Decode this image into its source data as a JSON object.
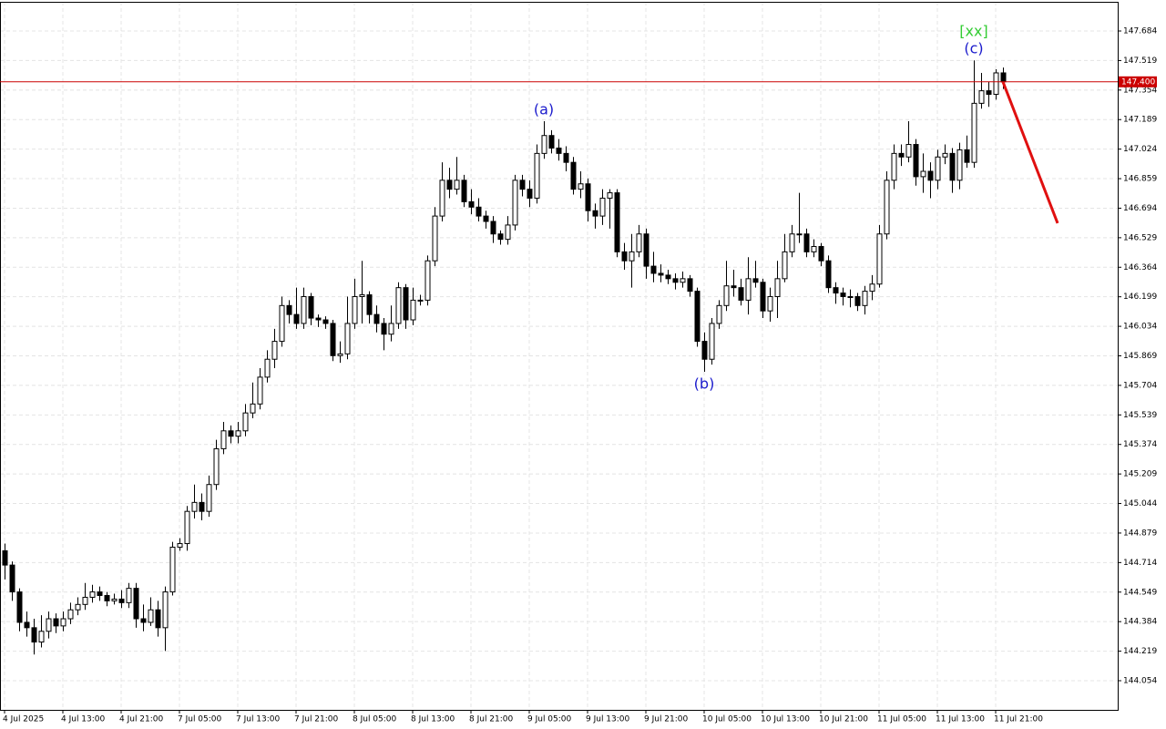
{
  "chart_data": {
    "type": "candlestick",
    "open": [
      144.78,
      144.7,
      144.55,
      144.38,
      144.35,
      144.27,
      144.33,
      144.4,
      144.36,
      144.4,
      144.45,
      144.48,
      144.52,
      144.55,
      144.53,
      144.5,
      144.51,
      144.49,
      144.57,
      144.4,
      144.38,
      144.45,
      144.35,
      144.55,
      144.8,
      144.82,
      145.0,
      145.05,
      145.0,
      145.15,
      145.35,
      145.45,
      145.42,
      145.45,
      145.55,
      145.6,
      145.75,
      145.85,
      145.95,
      146.15,
      146.1,
      146.05,
      146.2,
      146.08,
      146.07,
      146.05,
      145.87,
      145.88,
      146.05,
      146.2,
      146.21,
      146.1,
      146.05,
      145.99,
      146.05,
      146.25,
      146.07,
      146.18,
      146.18,
      146.4,
      146.65,
      146.85,
      146.8,
      146.85,
      146.73,
      146.7,
      146.65,
      146.62,
      146.55,
      146.52,
      146.6,
      146.85,
      146.8,
      146.75,
      147.0,
      147.1,
      147.03,
      147.0,
      146.95,
      146.8,
      146.83,
      146.68,
      146.65,
      146.75,
      146.78,
      146.45,
      146.4,
      146.45,
      146.55,
      146.37,
      146.33,
      146.32,
      146.3,
      146.28,
      146.3,
      146.23,
      145.95,
      145.85,
      146.05,
      146.15,
      146.26,
      146.25,
      146.18,
      146.3,
      146.28,
      146.12,
      146.2,
      146.3,
      146.45,
      146.55,
      146.55,
      146.45,
      146.48,
      146.4,
      146.25,
      146.22,
      146.2,
      146.2,
      146.15,
      146.23,
      146.27,
      146.55,
      146.85,
      147.0,
      146.98,
      147.05,
      146.87,
      146.9,
      146.85,
      146.98,
      147.0,
      146.85,
      147.02,
      146.95,
      147.28,
      147.35,
      147.33,
      147.45
    ],
    "high": [
      144.82,
      144.72,
      144.57,
      144.44,
      144.4,
      144.42,
      144.44,
      144.43,
      144.44,
      144.49,
      144.52,
      144.6,
      144.59,
      144.58,
      144.55,
      144.54,
      144.56,
      144.6,
      144.6,
      144.48,
      144.52,
      144.5,
      144.58,
      144.83,
      144.85,
      145.03,
      145.15,
      145.1,
      145.2,
      145.4,
      145.5,
      145.48,
      145.5,
      145.6,
      145.72,
      145.8,
      145.9,
      146.02,
      146.2,
      146.18,
      146.25,
      146.25,
      146.22,
      146.1,
      146.09,
      146.07,
      145.95,
      146.2,
      146.3,
      146.4,
      146.23,
      146.15,
      146.08,
      146.15,
      146.28,
      146.27,
      146.25,
      146.21,
      146.43,
      146.7,
      146.95,
      146.92,
      146.98,
      146.88,
      146.8,
      146.75,
      146.68,
      146.65,
      146.57,
      146.65,
      146.88,
      146.88,
      146.85,
      147.05,
      147.18,
      147.13,
      147.08,
      147.04,
      146.98,
      146.9,
      146.86,
      146.72,
      146.8,
      146.8,
      146.8,
      146.5,
      146.55,
      146.6,
      146.58,
      146.45,
      146.38,
      146.35,
      146.33,
      146.34,
      146.32,
      146.25,
      146.0,
      146.08,
      146.18,
      146.4,
      146.35,
      146.3,
      146.42,
      146.4,
      146.3,
      146.25,
      146.4,
      146.55,
      146.6,
      146.78,
      146.58,
      146.52,
      146.5,
      146.43,
      146.28,
      146.25,
      146.24,
      146.22,
      146.26,
      146.32,
      146.6,
      146.9,
      147.05,
      147.05,
      147.18,
      147.08,
      147.0,
      146.95,
      147.02,
      147.05,
      147.03,
      147.06,
      147.1,
      147.52,
      147.45,
      147.4,
      147.47,
      147.48
    ],
    "low": [
      144.62,
      144.5,
      144.33,
      144.3,
      144.2,
      144.24,
      144.29,
      144.32,
      144.33,
      144.37,
      144.42,
      144.45,
      144.49,
      144.5,
      144.47,
      144.48,
      144.46,
      144.46,
      144.35,
      144.33,
      144.36,
      144.3,
      144.22,
      144.53,
      144.78,
      144.78,
      144.96,
      144.95,
      144.97,
      145.12,
      145.32,
      145.38,
      145.38,
      145.42,
      145.52,
      145.57,
      145.72,
      145.8,
      145.92,
      146.05,
      146.02,
      146.02,
      146.04,
      146.03,
      146.02,
      145.84,
      145.83,
      145.85,
      146.02,
      146.05,
      146.05,
      146.0,
      145.9,
      145.95,
      146.02,
      146.02,
      146.04,
      146.15,
      146.15,
      146.37,
      146.62,
      146.75,
      146.77,
      146.7,
      146.66,
      146.62,
      146.58,
      146.5,
      146.49,
      146.49,
      146.57,
      146.76,
      146.7,
      146.72,
      146.97,
      147.0,
      146.96,
      146.9,
      146.77,
      146.75,
      146.62,
      146.58,
      146.6,
      146.58,
      146.42,
      146.35,
      146.25,
      146.42,
      146.3,
      146.28,
      146.28,
      146.27,
      146.24,
      146.25,
      146.2,
      145.92,
      145.78,
      145.82,
      146.02,
      146.12,
      146.2,
      146.15,
      146.1,
      146.25,
      146.08,
      146.06,
      146.08,
      146.28,
      146.42,
      146.5,
      146.42,
      146.42,
      146.37,
      146.22,
      146.16,
      146.15,
      146.14,
      146.12,
      146.1,
      146.18,
      146.25,
      146.52,
      146.8,
      146.93,
      146.95,
      146.82,
      146.78,
      146.75,
      146.8,
      146.94,
      146.78,
      146.8,
      146.92,
      146.92,
      147.25,
      147.26,
      147.3,
      147.36
    ],
    "close": [
      144.7,
      144.55,
      144.38,
      144.35,
      144.27,
      144.33,
      144.4,
      144.36,
      144.4,
      144.45,
      144.48,
      144.52,
      144.55,
      144.53,
      144.5,
      144.51,
      144.49,
      144.57,
      144.4,
      144.38,
      144.45,
      144.35,
      144.55,
      144.8,
      144.82,
      145.0,
      145.05,
      145.0,
      145.15,
      145.35,
      145.45,
      145.42,
      145.45,
      145.55,
      145.6,
      145.75,
      145.85,
      145.95,
      146.15,
      146.1,
      146.05,
      146.2,
      146.08,
      146.07,
      146.05,
      145.87,
      145.88,
      146.05,
      146.2,
      146.21,
      146.1,
      146.05,
      145.99,
      146.05,
      146.25,
      146.07,
      146.18,
      146.18,
      146.4,
      146.65,
      146.85,
      146.8,
      146.85,
      146.73,
      146.7,
      146.65,
      146.62,
      146.55,
      146.52,
      146.6,
      146.85,
      146.8,
      146.75,
      147.0,
      147.1,
      147.03,
      147.0,
      146.95,
      146.8,
      146.83,
      146.68,
      146.65,
      146.75,
      146.78,
      146.45,
      146.4,
      146.45,
      146.55,
      146.37,
      146.33,
      146.32,
      146.3,
      146.28,
      146.3,
      146.23,
      145.95,
      145.85,
      146.05,
      146.15,
      146.26,
      146.25,
      146.18,
      146.3,
      146.28,
      146.12,
      146.2,
      146.3,
      146.45,
      146.55,
      146.55,
      146.45,
      146.48,
      146.4,
      146.25,
      146.22,
      146.2,
      146.2,
      146.15,
      146.23,
      146.27,
      146.55,
      146.85,
      147.0,
      146.98,
      147.05,
      146.87,
      146.9,
      146.85,
      146.98,
      147.0,
      146.85,
      147.02,
      146.95,
      147.28,
      147.35,
      147.33,
      147.45,
      147.4
    ],
    "up_color": "#ffffff",
    "down_color": "#000000",
    "xlim": [
      -0.625,
      152.75
    ],
    "ylim": [
      143.891,
      147.847
    ],
    "xticks": [
      {
        "value": 0,
        "label": "4 Jul 2025"
      },
      {
        "value": 8,
        "label": "4 Jul 13:00"
      },
      {
        "value": 16,
        "label": "4 Jul 21:00"
      },
      {
        "value": 24,
        "label": "7 Jul 05:00"
      },
      {
        "value": 32,
        "label": "7 Jul 13:00"
      },
      {
        "value": 40,
        "label": "7 Jul 21:00"
      },
      {
        "value": 48,
        "label": "8 Jul 05:00"
      },
      {
        "value": 56,
        "label": "8 Jul 13:00"
      },
      {
        "value": 64,
        "label": "8 Jul 21:00"
      },
      {
        "value": 72,
        "label": "9 Jul 05:00"
      },
      {
        "value": 80,
        "label": "9 Jul 13:00"
      },
      {
        "value": 88,
        "label": "9 Jul 21:00"
      },
      {
        "value": 96,
        "label": "10 Jul 05:00"
      },
      {
        "value": 104,
        "label": "10 Jul 13:00"
      },
      {
        "value": 112,
        "label": "10 Jul 21:00"
      },
      {
        "value": 120,
        "label": "11 Jul 05:00"
      },
      {
        "value": 128,
        "label": "11 Jul 13:00"
      },
      {
        "value": 136,
        "label": "11 Jul 21:00"
      }
    ],
    "yticks": [
      147.684,
      147.519,
      147.354,
      147.189,
      147.024,
      146.859,
      146.694,
      146.529,
      146.364,
      146.199,
      146.034,
      145.869,
      145.704,
      145.539,
      145.374,
      145.209,
      145.044,
      144.879,
      144.714,
      144.549,
      144.384,
      144.219,
      144.054
    ],
    "grid": true,
    "price_line": {
      "value": 147.4,
      "label": "147.400",
      "color": "#cc0000"
    },
    "annotations": [
      {
        "text": "(a)",
        "x": 74,
        "side": "above",
        "color": "#1a1acc"
      },
      {
        "text": "(b)",
        "x": 96,
        "side": "below",
        "color": "#1a1acc"
      },
      {
        "text": "(c)",
        "x": 133,
        "side": "above",
        "color": "#1a1acc"
      },
      {
        "text": "[xx]",
        "x": 133,
        "side": "above",
        "color": "#33cc33"
      }
    ],
    "forecast": {
      "x": [
        137,
        144.5
      ],
      "values": [
        147.4,
        146.61
      ],
      "color": "#e01010"
    }
  }
}
